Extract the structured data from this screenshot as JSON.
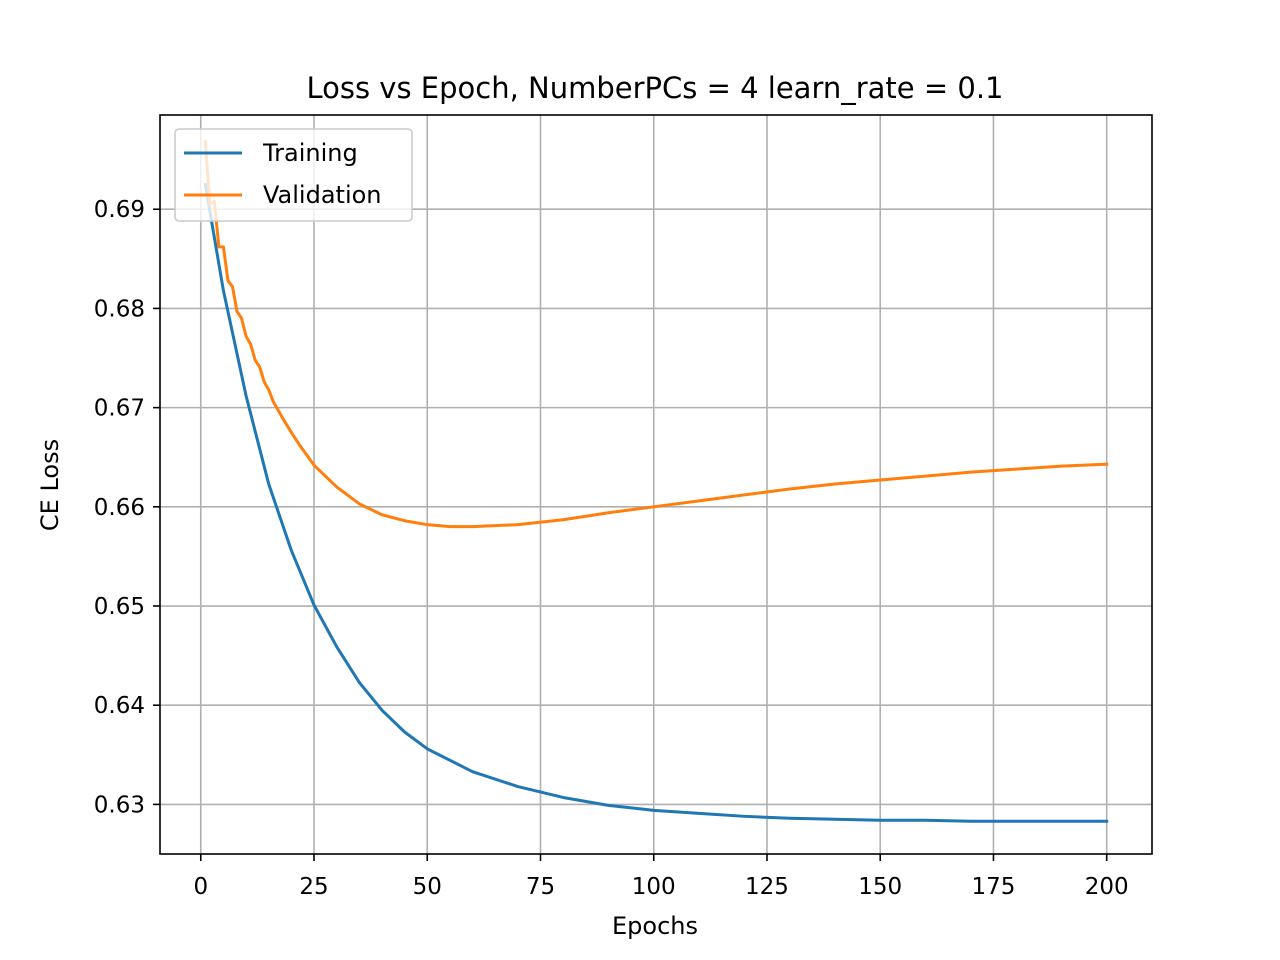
{
  "chart_data": {
    "type": "line",
    "title": "Loss vs Epoch, NumberPCs = 4 learn_rate = 0.1",
    "xlabel": "Epochs",
    "ylabel": "CE Loss",
    "xlim": [
      -9,
      210
    ],
    "ylim": [
      0.625,
      0.6995
    ],
    "xticks": [
      0,
      25,
      50,
      75,
      100,
      125,
      150,
      175,
      200
    ],
    "xtick_labels": [
      "0",
      "25",
      "50",
      "75",
      "100",
      "125",
      "150",
      "175",
      "200"
    ],
    "yticks": [
      0.63,
      0.64,
      0.65,
      0.66,
      0.67,
      0.68,
      0.69
    ],
    "ytick_labels": [
      "0.63",
      "0.64",
      "0.65",
      "0.66",
      "0.67",
      "0.68",
      "0.69"
    ],
    "grid": true,
    "legend": {
      "placement": "upper-left",
      "entries": [
        "Training",
        "Validation"
      ]
    },
    "series": [
      {
        "name": "Training",
        "color": "#1f77b4",
        "x": [
          1,
          5,
          10,
          15,
          20,
          25,
          30,
          35,
          40,
          45,
          50,
          60,
          70,
          80,
          90,
          100,
          110,
          120,
          130,
          140,
          150,
          160,
          170,
          180,
          190,
          200
        ],
        "y": [
          0.6925,
          0.6818,
          0.6712,
          0.6623,
          0.6556,
          0.6501,
          0.6459,
          0.6423,
          0.6395,
          0.6373,
          0.6356,
          0.6333,
          0.6318,
          0.6307,
          0.6299,
          0.6294,
          0.6291,
          0.6288,
          0.6286,
          0.6285,
          0.6284,
          0.6284,
          0.6283,
          0.6283,
          0.6283,
          0.6283
        ]
      },
      {
        "name": "Validation",
        "color": "#ff7f0e",
        "x": [
          1,
          2,
          3,
          4,
          5,
          6,
          7,
          8,
          9,
          10,
          11,
          12,
          13,
          14,
          15,
          16,
          18,
          20,
          22,
          25,
          30,
          35,
          40,
          45,
          50,
          55,
          60,
          70,
          80,
          90,
          100,
          110,
          120,
          130,
          140,
          150,
          160,
          170,
          180,
          190,
          200
        ],
        "y": [
          0.6968,
          0.6905,
          0.6908,
          0.6862,
          0.6862,
          0.6828,
          0.6822,
          0.6797,
          0.679,
          0.6772,
          0.6764,
          0.6748,
          0.6741,
          0.6726,
          0.6718,
          0.6706,
          0.669,
          0.6675,
          0.6661,
          0.6642,
          0.662,
          0.6603,
          0.6592,
          0.6586,
          0.6582,
          0.658,
          0.658,
          0.6582,
          0.6587,
          0.6594,
          0.66,
          0.6606,
          0.6612,
          0.6618,
          0.6623,
          0.6627,
          0.6631,
          0.6635,
          0.6638,
          0.6641,
          0.6643
        ]
      }
    ]
  },
  "style": {
    "axis_color": "#000000",
    "grid_color": "#b0b0b0",
    "legend_border": "#cccccc",
    "background": "#ffffff"
  }
}
